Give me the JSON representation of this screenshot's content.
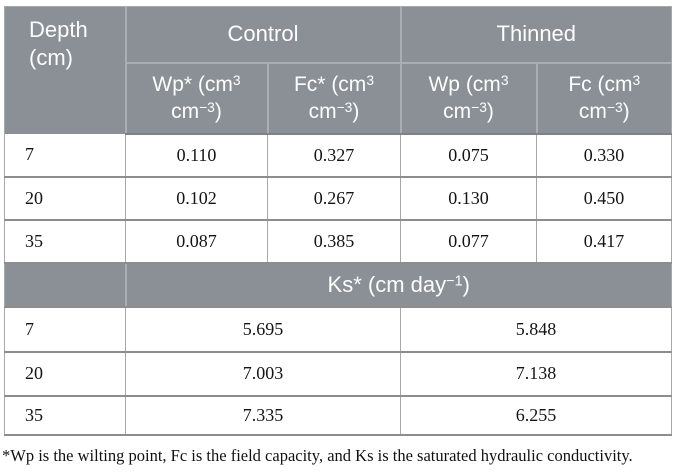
{
  "colors": {
    "header_bg": "#8a9095",
    "header_text": "#fdfdfd",
    "header_divider": "#aaaeb1",
    "header_bottom_border": "#7e8386",
    "row_border": "#8d8d8d",
    "column_border": "#a8a8a8",
    "body_text": "#141414"
  },
  "table": {
    "header": {
      "depth_label": "Depth (cm)",
      "control_label": "Control",
      "thinned_label": "Thinned",
      "subheaders": [
        [
          {
            "t": "Wp* (cm"
          },
          {
            "t": "3",
            "sup": true
          },
          {
            "t": " cm"
          },
          {
            "t": "−3",
            "sup": true
          },
          {
            "t": ")"
          }
        ],
        [
          {
            "t": "Fc* (cm"
          },
          {
            "t": "3",
            "sup": true
          },
          {
            "t": " cm"
          },
          {
            "t": "−3",
            "sup": true
          },
          {
            "t": ")"
          }
        ],
        [
          {
            "t": "Wp (cm"
          },
          {
            "t": "3",
            "sup": true
          },
          {
            "t": " cm"
          },
          {
            "t": "−3",
            "sup": true
          },
          {
            "t": ")"
          }
        ],
        [
          {
            "t": "Fc (cm"
          },
          {
            "t": "3",
            "sup": true
          },
          {
            "t": " cm"
          },
          {
            "t": "−3",
            "sup": true
          },
          {
            "t": ")"
          }
        ]
      ]
    },
    "section1": {
      "rows": [
        {
          "depth": "7",
          "values": [
            "0.110",
            "0.327",
            "0.075",
            "0.330"
          ]
        },
        {
          "depth": "20",
          "values": [
            "0.102",
            "0.267",
            "0.130",
            "0.450"
          ]
        },
        {
          "depth": "35",
          "values": [
            "0.087",
            "0.385",
            "0.077",
            "0.417"
          ]
        }
      ]
    },
    "ks_header": [
      {
        "t": "Ks* (cm day"
      },
      {
        "t": "−1",
        "sup": true
      },
      {
        "t": ")"
      }
    ],
    "section2": {
      "rows": [
        {
          "depth": "7",
          "control": "5.695",
          "thinned": "5.848"
        },
        {
          "depth": "20",
          "control": "7.003",
          "thinned": "7.138"
        },
        {
          "depth": "35",
          "control": "7.335",
          "thinned": "6.255"
        }
      ]
    }
  },
  "footnote": "*Wp is the wilting point, Fc is the field capacity, and Ks is the saturated hydraulic conductivity."
}
